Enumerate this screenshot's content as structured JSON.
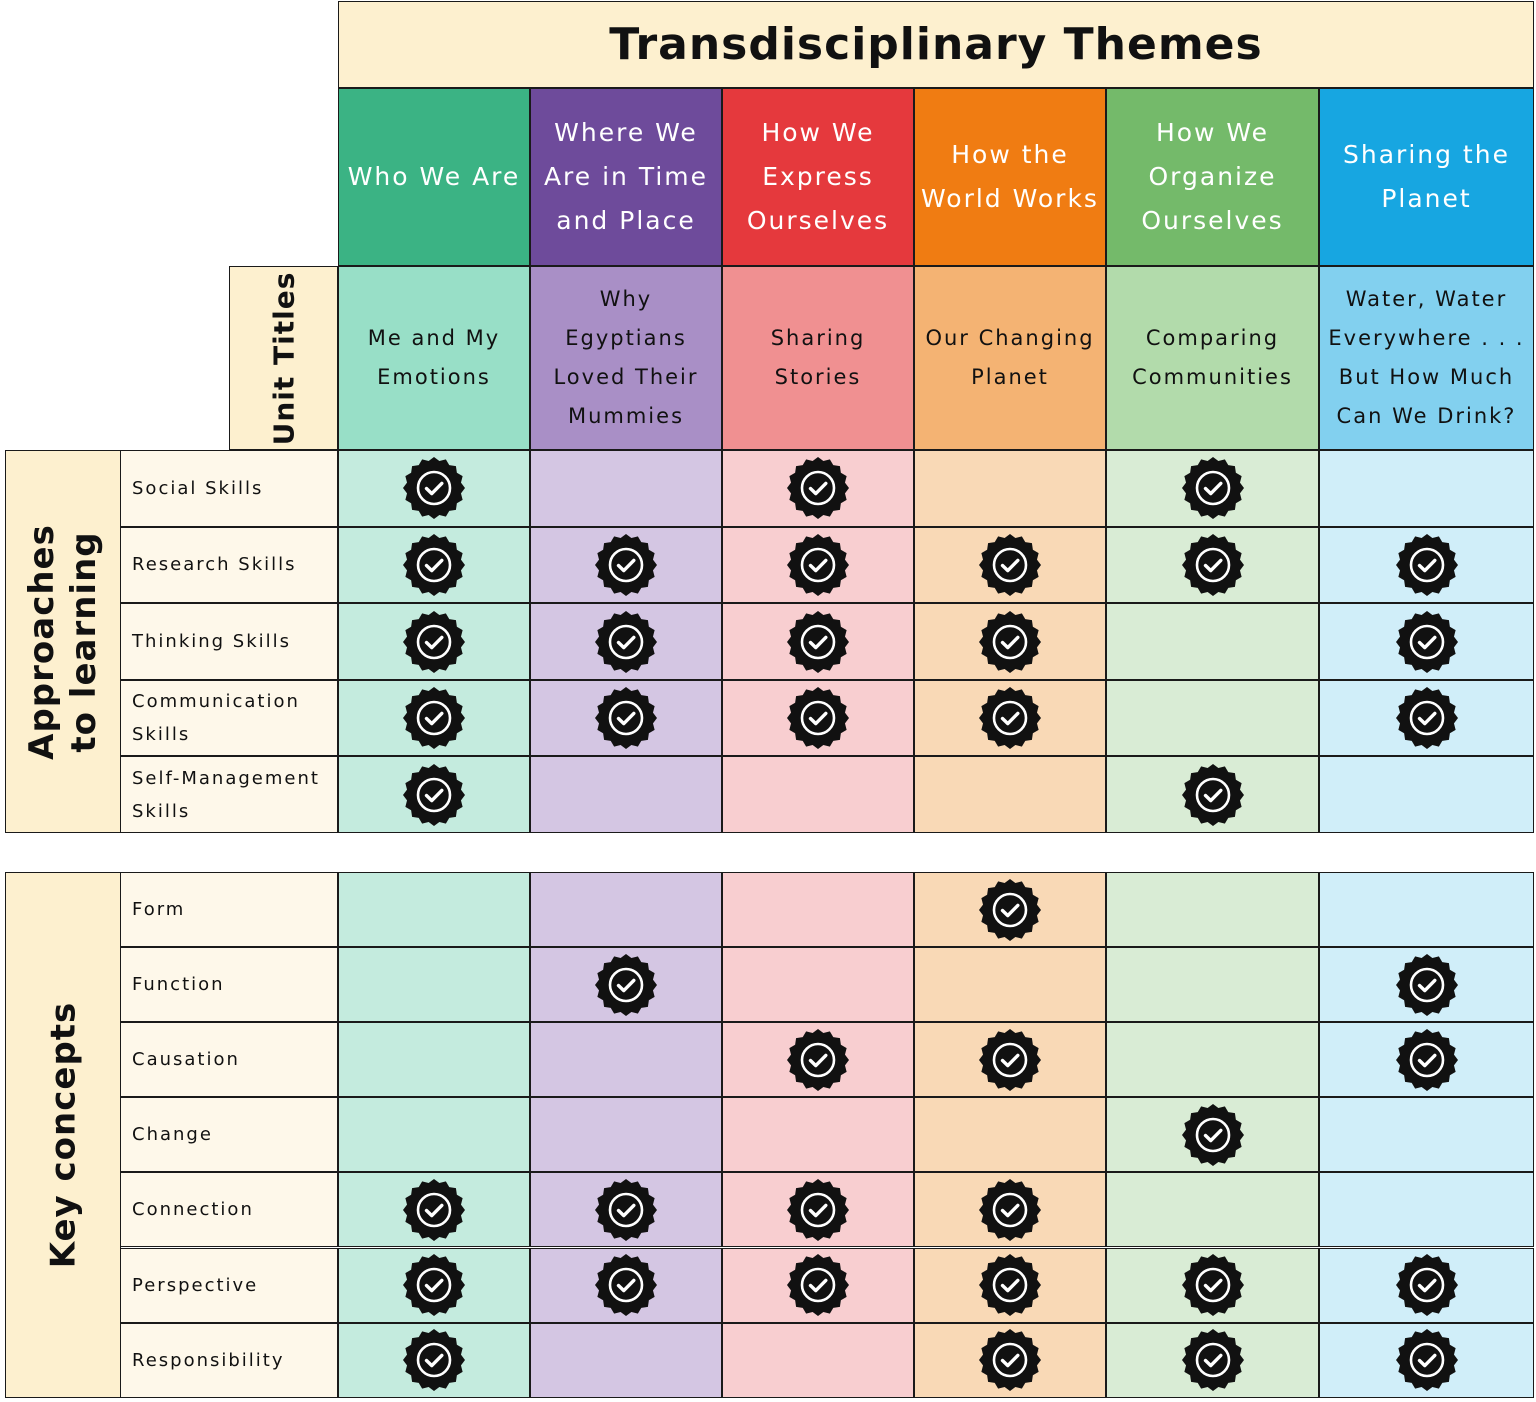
{
  "title": "Transdisciplinary Themes",
  "unit_titles_label": "Unit Titles",
  "themes": [
    {
      "name": "Who We Are",
      "unit": "Me and My Emotions",
      "color": "#3bb384",
      "light": "#98dfc7",
      "pale": "#c4ebde"
    },
    {
      "name": "Where We Are in Time and Place",
      "unit": "Why Egyptians Loved Their Mummies",
      "color": "#6e4b9b",
      "light": "#a98fc6",
      "pale": "#d4c6e3"
    },
    {
      "name": "How We Express Ourselves",
      "unit": "Sharing Stories",
      "color": "#e5393d",
      "light": "#f09091",
      "pale": "#f8ced0"
    },
    {
      "name": "How the World Works",
      "unit": "Our Changing Planet",
      "color": "#f07c12",
      "light": "#f4b373",
      "pale": "#f9d9b6"
    },
    {
      "name": "How We Organize Ourselves",
      "unit": "Comparing Communities",
      "color": "#74ba6a",
      "light": "#b2dbab",
      "pale": "#d9ecd5"
    },
    {
      "name": "Sharing the Planet",
      "unit": "Water, Water Everywhere . . . But How Much Can We Drink?",
      "color": "#17a6e1",
      "light": "#82d0ef",
      "pale": "#d0eef9"
    }
  ],
  "sections": [
    {
      "label": "Approaches to learning",
      "rows": [
        {
          "label": "Social Skills",
          "checks": [
            true,
            false,
            true,
            false,
            true,
            false
          ]
        },
        {
          "label": "Research Skills",
          "checks": [
            true,
            true,
            true,
            true,
            true,
            true
          ]
        },
        {
          "label": "Thinking Skills",
          "checks": [
            true,
            true,
            true,
            true,
            false,
            true
          ]
        },
        {
          "label": "Communication Skills",
          "checks": [
            true,
            true,
            true,
            true,
            false,
            true
          ]
        },
        {
          "label": "Self-Management Skills",
          "checks": [
            true,
            false,
            false,
            false,
            true,
            false
          ]
        }
      ]
    },
    {
      "label": "Key concepts",
      "rows": [
        {
          "label": "Form",
          "checks": [
            false,
            false,
            false,
            true,
            false,
            false
          ]
        },
        {
          "label": "Function",
          "checks": [
            false,
            true,
            false,
            false,
            false,
            true
          ]
        },
        {
          "label": "Causation",
          "checks": [
            false,
            false,
            true,
            true,
            false,
            true
          ]
        },
        {
          "label": "Change",
          "checks": [
            false,
            false,
            false,
            false,
            true,
            false
          ]
        },
        {
          "label": "Connection",
          "checks": [
            true,
            true,
            true,
            true,
            false,
            false
          ]
        },
        {
          "label": "Perspective",
          "checks": [
            true,
            true,
            true,
            true,
            true,
            true
          ]
        },
        {
          "label": "Responsibility",
          "checks": [
            true,
            false,
            false,
            true,
            true,
            true
          ]
        }
      ]
    }
  ],
  "icons": {
    "check": "check-badge-icon"
  }
}
